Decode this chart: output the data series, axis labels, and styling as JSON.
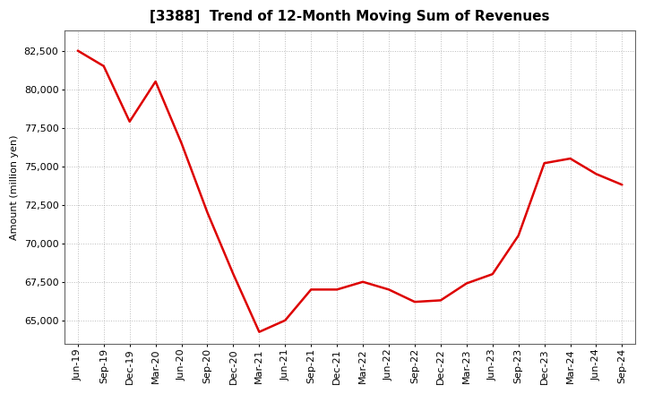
{
  "title": "[3388]  Trend of 12-Month Moving Sum of Revenues",
  "ylabel": "Amount (million yen)",
  "line_color": "#dd0000",
  "line_width": 1.8,
  "background_color": "#ffffff",
  "grid_color": "#aaaaaa",
  "ylim": [
    63500,
    83800
  ],
  "yticks": [
    65000,
    67500,
    70000,
    72500,
    75000,
    77500,
    80000,
    82500
  ],
  "x_labels": [
    "Jun-19",
    "Sep-19",
    "Dec-19",
    "Mar-20",
    "Jun-20",
    "Sep-20",
    "Dec-20",
    "Mar-21",
    "Jun-21",
    "Sep-21",
    "Dec-21",
    "Mar-22",
    "Jun-22",
    "Sep-22",
    "Dec-22",
    "Mar-23",
    "Jun-23",
    "Sep-23",
    "Dec-23",
    "Mar-24",
    "Jun-24",
    "Sep-24"
  ],
  "values": [
    82500,
    81500,
    77900,
    80500,
    76500,
    72000,
    68000,
    64250,
    65000,
    67000,
    67000,
    67500,
    67000,
    66200,
    66300,
    67400,
    68000,
    70500,
    75200,
    75500,
    74500,
    73800
  ],
  "figsize": [
    7.2,
    4.4
  ],
  "dpi": 100,
  "title_fontsize": 11,
  "label_fontsize": 8,
  "ylabel_fontsize": 8
}
